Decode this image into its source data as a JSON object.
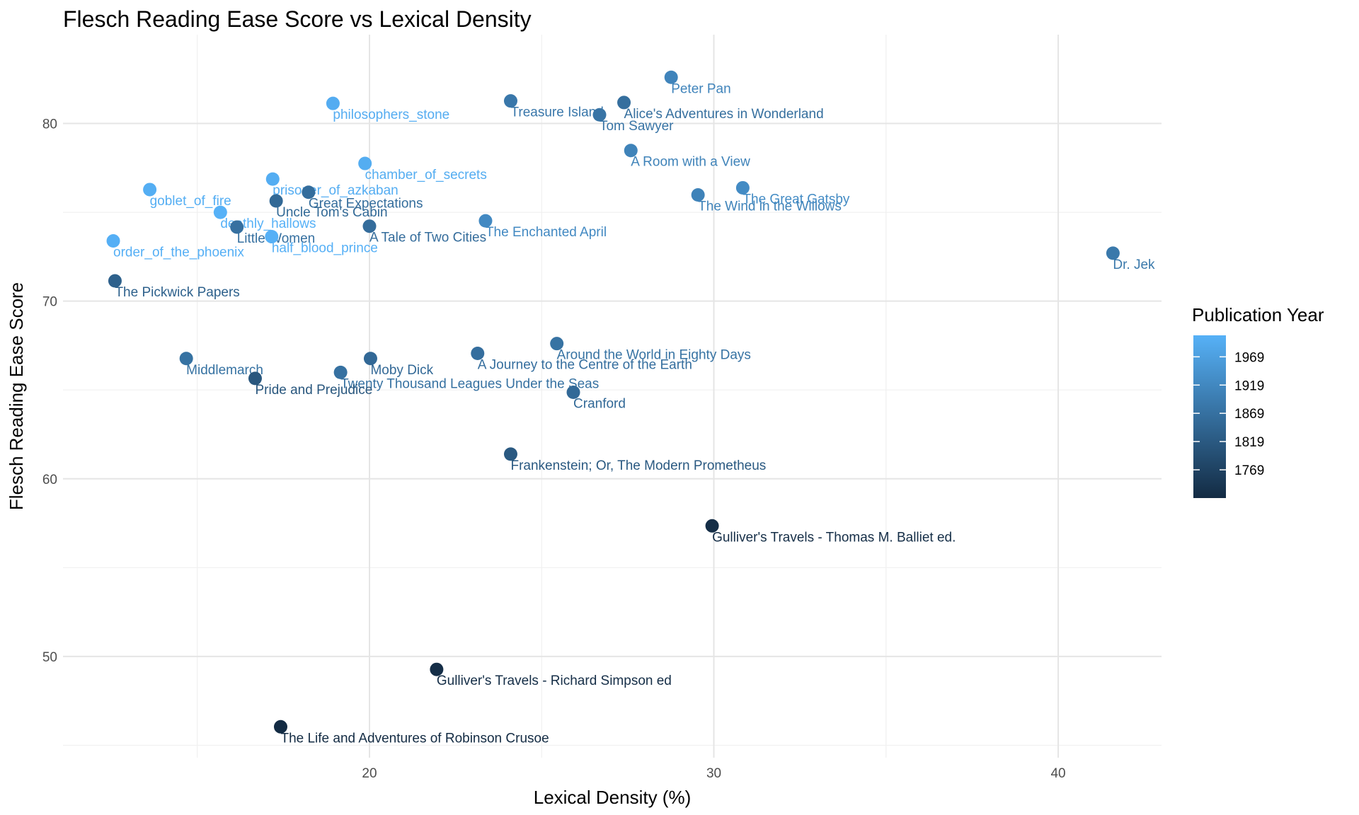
{
  "chart_data": {
    "type": "scatter",
    "title": "Flesch Reading Ease Score vs Lexical Density",
    "x_label": "Lexical Density (%)",
    "y_label": "Flesch Reading Ease Score",
    "legend_title": "Publication Year",
    "legend_position": "right",
    "grid": true,
    "xlim": [
      11.1,
      43.0
    ],
    "xticks": [
      20,
      30,
      40
    ],
    "xminor": [
      15,
      25,
      35
    ],
    "ylim": [
      44.3,
      85.0
    ],
    "yticks": [
      50,
      60,
      70,
      80
    ],
    "yminor": [
      45,
      55,
      65,
      75
    ],
    "colorscale": {
      "low": "#132B43",
      "high": "#56B1F7",
      "limits": [
        1719,
        2007
      ],
      "ticks": [
        1769,
        1819,
        1869,
        1919,
        1969
      ]
    },
    "labels": [
      "philosophers_stone",
      "Treasure Island",
      "Alice's Adventures in Wonderland",
      "Peter Pan",
      "Tom Sawyer",
      "A Room with a View",
      "chamber_of_secrets",
      "goblet_of_fire",
      "prisoner_of_azkaban",
      "Great Expectations",
      "Uncle Tom's Cabin",
      "The Wind in the Willows",
      "The Great Gatsby",
      "deathly_hallows",
      "The Enchanted April",
      "A Tale of Two Cities",
      "Little Women",
      "half_blood_prince",
      "order_of_the_phoenix",
      "Dr. Jek",
      "The Pickwick Papers",
      "Around the World in Eighty Days",
      "A Journey to the Centre of the Earth",
      "Middlemarch",
      "Moby Dick",
      "Twenty Thousand Leagues Under the Seas",
      "Pride and Prejudice",
      "Cranford",
      "Frankenstein; Or, The Modern Prometheus",
      "Gulliver's Travels - Thomas M. Balliet ed.",
      "Gulliver's Travels - Richard Simpson ed",
      "The Life and Adventures of Robinson Crusoe"
    ],
    "x": [
      18.94,
      24.1,
      27.39,
      28.76,
      26.68,
      27.59,
      19.87,
      13.62,
      17.19,
      18.23,
      17.29,
      29.54,
      30.84,
      15.67,
      23.37,
      20.0,
      16.15,
      17.16,
      12.56,
      41.59,
      12.61,
      25.44,
      23.14,
      14.68,
      20.03,
      19.16,
      16.68,
      25.92,
      24.1,
      29.95,
      21.95,
      17.42
    ],
    "y": [
      81.13,
      81.27,
      81.18,
      82.6,
      80.49,
      78.48,
      77.75,
      76.28,
      76.87,
      76.13,
      75.64,
      75.98,
      76.38,
      75.0,
      74.52,
      74.22,
      74.17,
      73.63,
      73.39,
      72.7,
      71.14,
      67.61,
      67.06,
      66.77,
      66.77,
      65.99,
      65.65,
      64.87,
      61.39,
      57.35,
      49.27,
      46.04
    ],
    "color_values": [
      1997,
      1883,
      1865,
      1911,
      1876,
      1908,
      1998,
      2000,
      1999,
      1861,
      1852,
      1908,
      1925,
      2007,
      1922,
      1859,
      1868,
      2005,
      2003,
      1886,
      1836,
      1873,
      1864,
      1871,
      1851,
      1870,
      1813,
      1853,
      1818,
      1726,
      1726,
      1719
    ]
  }
}
